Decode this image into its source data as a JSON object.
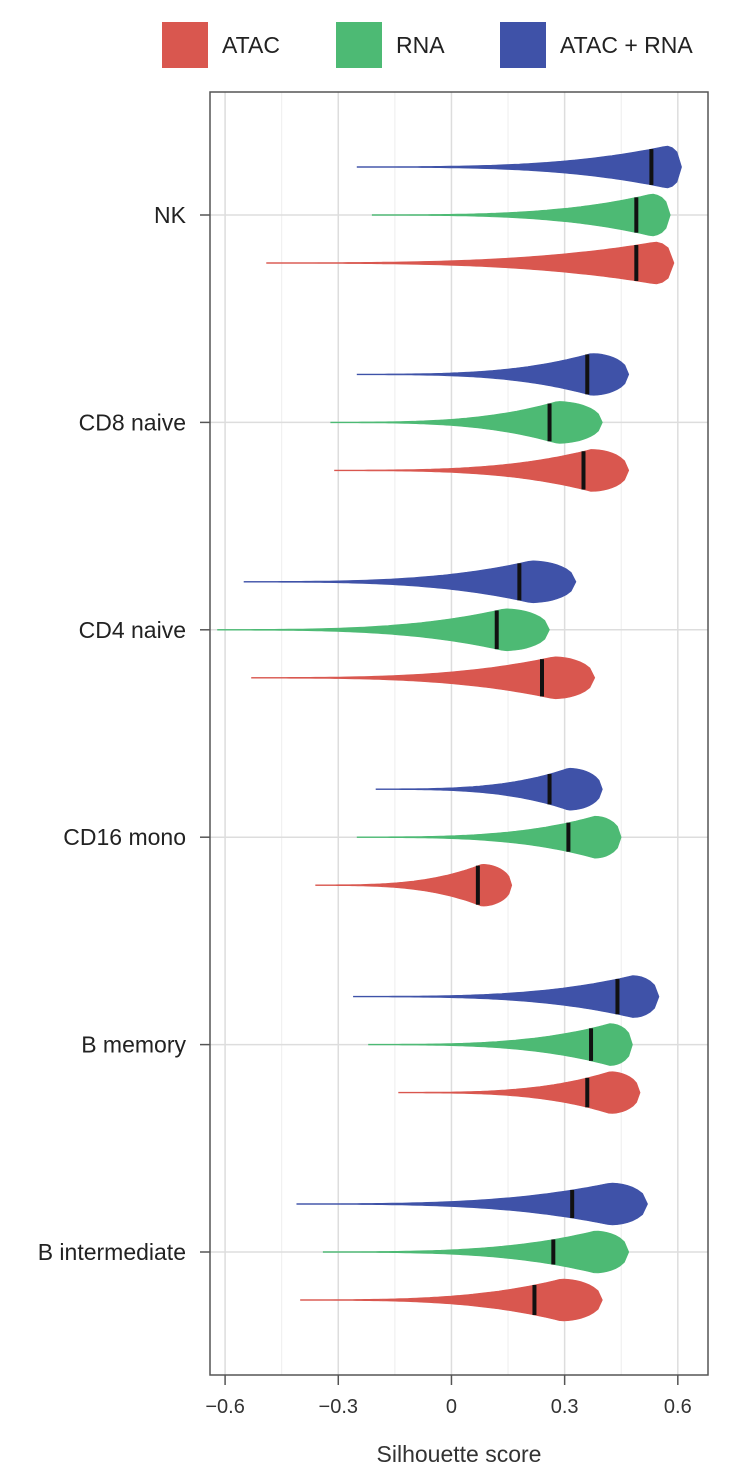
{
  "legend": {
    "items": [
      {
        "label": "ATAC",
        "color": "#d9574f"
      },
      {
        "label": "RNA",
        "color": "#4dba74"
      },
      {
        "label": "ATAC + RNA",
        "color": "#3f52a8"
      }
    ]
  },
  "chart_data": {
    "type": "violin",
    "orientation": "horizontal",
    "xlabel": "Silhouette score",
    "xlim": [
      -0.64,
      0.68
    ],
    "xticks": [
      -0.6,
      -0.3,
      0,
      0.3,
      0.6
    ],
    "xtick_labels": [
      "−0.6",
      "−0.3",
      "0",
      "0.3",
      "0.6"
    ],
    "grid": true,
    "legend_position": "top",
    "categories": [
      "NK",
      "CD8 naive",
      "CD4 naive",
      "CD16 mono",
      "B memory",
      "B intermediate"
    ],
    "series": [
      {
        "name": "ATAC + RNA",
        "color": "#3f52a8",
        "violins": [
          {
            "category": "NK",
            "min": -0.25,
            "max": 0.61,
            "median": 0.53,
            "peak": 0.57
          },
          {
            "category": "CD8 naive",
            "min": -0.25,
            "max": 0.47,
            "median": 0.36,
            "peak": 0.37
          },
          {
            "category": "CD4 naive",
            "min": -0.55,
            "max": 0.33,
            "median": 0.18,
            "peak": 0.21
          },
          {
            "category": "CD16 mono",
            "min": -0.2,
            "max": 0.4,
            "median": 0.26,
            "peak": 0.31
          },
          {
            "category": "B memory",
            "min": -0.26,
            "max": 0.55,
            "median": 0.44,
            "peak": 0.48
          },
          {
            "category": "B intermediate",
            "min": -0.41,
            "max": 0.52,
            "median": 0.32,
            "peak": 0.42
          }
        ]
      },
      {
        "name": "RNA",
        "color": "#4dba74",
        "violins": [
          {
            "category": "NK",
            "min": -0.21,
            "max": 0.58,
            "median": 0.49,
            "peak": 0.53
          },
          {
            "category": "CD8 naive",
            "min": -0.32,
            "max": 0.4,
            "median": 0.26,
            "peak": 0.28
          },
          {
            "category": "CD4 naive",
            "min": -0.62,
            "max": 0.26,
            "median": 0.12,
            "peak": 0.14
          },
          {
            "category": "CD16 mono",
            "min": -0.25,
            "max": 0.45,
            "median": 0.31,
            "peak": 0.38
          },
          {
            "category": "B memory",
            "min": -0.22,
            "max": 0.48,
            "median": 0.37,
            "peak": 0.42
          },
          {
            "category": "B intermediate",
            "min": -0.34,
            "max": 0.47,
            "median": 0.27,
            "peak": 0.38
          }
        ]
      },
      {
        "name": "ATAC",
        "color": "#d9574f",
        "violins": [
          {
            "category": "NK",
            "min": -0.49,
            "max": 0.59,
            "median": 0.49,
            "peak": 0.54
          },
          {
            "category": "CD8 naive",
            "min": -0.31,
            "max": 0.47,
            "median": 0.35,
            "peak": 0.37
          },
          {
            "category": "CD4 naive",
            "min": -0.53,
            "max": 0.38,
            "median": 0.24,
            "peak": 0.27
          },
          {
            "category": "CD16 mono",
            "min": -0.36,
            "max": 0.16,
            "median": 0.07,
            "peak": 0.08
          },
          {
            "category": "B memory",
            "min": -0.14,
            "max": 0.5,
            "median": 0.36,
            "peak": 0.42
          },
          {
            "category": "B intermediate",
            "min": -0.4,
            "max": 0.4,
            "median": 0.22,
            "peak": 0.29
          }
        ]
      }
    ]
  }
}
